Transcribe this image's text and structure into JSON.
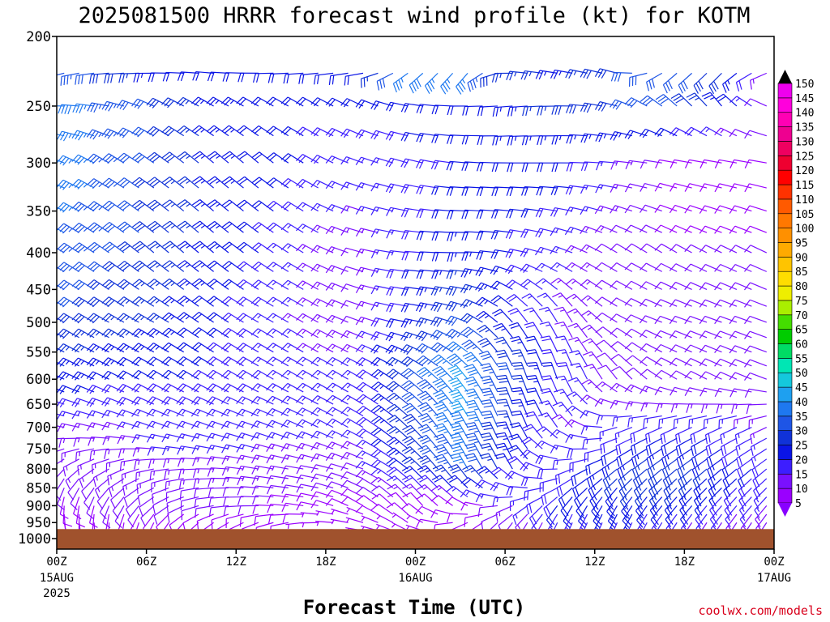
{
  "chart_data": {
    "type": "wind-barb-time-height",
    "title": "2025081500 HRRR forecast wind profile (kt) for KOTM",
    "xlabel": "Forecast Time (UTC)",
    "credit": "coolwx.com/models",
    "y_axis": {
      "unit": "hPa",
      "scale": "log",
      "range": [
        200,
        1000
      ],
      "inverted": true,
      "ticks": [
        "200",
        "250",
        "300",
        "350",
        "400",
        "450",
        "500",
        "550",
        "600",
        "650",
        "700",
        "750",
        "800",
        "850",
        "900",
        "950",
        "1000"
      ]
    },
    "x_axis": {
      "range_hours": [
        0,
        48
      ],
      "ticks": [
        {
          "hour": 0,
          "label": "00Z",
          "sub1": "15AUG",
          "sub2": "2025"
        },
        {
          "hour": 6,
          "label": "06Z",
          "sub1": "",
          "sub2": ""
        },
        {
          "hour": 12,
          "label": "12Z",
          "sub1": "",
          "sub2": ""
        },
        {
          "hour": 18,
          "label": "18Z",
          "sub1": "",
          "sub2": ""
        },
        {
          "hour": 24,
          "label": "00Z",
          "sub1": "16AUG",
          "sub2": ""
        },
        {
          "hour": 30,
          "label": "06Z",
          "sub1": "",
          "sub2": ""
        },
        {
          "hour": 36,
          "label": "12Z",
          "sub1": "",
          "sub2": ""
        },
        {
          "hour": 42,
          "label": "18Z",
          "sub1": "",
          "sub2": ""
        },
        {
          "hour": 48,
          "label": "00Z",
          "sub1": "17AUG",
          "sub2": ""
        }
      ]
    },
    "colorbar": {
      "unit": "kt",
      "levels": [
        5,
        10,
        15,
        20,
        25,
        30,
        35,
        40,
        45,
        50,
        55,
        60,
        65,
        70,
        75,
        80,
        85,
        90,
        95,
        100,
        105,
        110,
        115,
        120,
        125,
        130,
        135,
        140,
        145,
        150
      ],
      "colors": [
        "#9a00ff",
        "#7a10ff",
        "#3d1eff",
        "#0a14e6",
        "#1032d8",
        "#1e55e6",
        "#1e78f0",
        "#1ea0f0",
        "#14c8dc",
        "#00e6b4",
        "#00dc64",
        "#00cc00",
        "#44dd00",
        "#aaee00",
        "#eeee00",
        "#ffdd00",
        "#ffc400",
        "#ffaa00",
        "#ff9000",
        "#ff7800",
        "#ff5a00",
        "#ff3200",
        "#ff0000",
        "#ee0030",
        "#ee0060",
        "#ee0090",
        "#ff00b4",
        "#ff00dc",
        "#ee00ee",
        "#cc00cc"
      ],
      "extend_low_color": "#8800ff",
      "extend_high_color": "#000000"
    },
    "ground_color": "#a0522d",
    "ground_level_hpa": 970,
    "wind_profile": [
      {
        "level": 225,
        "dir": [
          255,
          265,
          270,
          275,
          270,
          265,
          260,
          230,
          220,
          275,
          280,
          285,
          230,
          225,
          250
        ],
        "speed": [
          35,
          30,
          22,
          22,
          20,
          20,
          22,
          38,
          36,
          26,
          24,
          30,
          32,
          28,
          10
        ]
      },
      {
        "level": 250,
        "dir": [
          270,
          280,
          295,
          300,
          300,
          300,
          295,
          280,
          270,
          265,
          270,
          285,
          310,
          320,
          290
        ],
        "speed": [
          40,
          35,
          30,
          25,
          22,
          20,
          20,
          22,
          20,
          24,
          28,
          30,
          32,
          24,
          10
        ]
      },
      {
        "level": 300,
        "dir": [
          290,
          300,
          305,
          310,
          310,
          300,
          290,
          285,
          275,
          270,
          270,
          275,
          280,
          280,
          280
        ],
        "speed": [
          38,
          35,
          30,
          25,
          22,
          20,
          16,
          18,
          20,
          22,
          22,
          16,
          10,
          8,
          8
        ]
      },
      {
        "level": 400,
        "dir": [
          300,
          305,
          310,
          310,
          305,
          300,
          285,
          275,
          270,
          280,
          290,
          300,
          300,
          295,
          295
        ],
        "speed": [
          35,
          32,
          28,
          24,
          20,
          15,
          12,
          18,
          24,
          20,
          16,
          12,
          10,
          10,
          10
        ]
      },
      {
        "level": 500,
        "dir": [
          300,
          300,
          300,
          305,
          300,
          300,
          290,
          280,
          290,
          320,
          330,
          300,
          290,
          290,
          290
        ],
        "speed": [
          30,
          28,
          26,
          22,
          18,
          14,
          12,
          22,
          32,
          20,
          14,
          12,
          10,
          10,
          10
        ]
      },
      {
        "level": 600,
        "dir": [
          295,
          295,
          300,
          300,
          300,
          300,
          300,
          305,
          320,
          340,
          340,
          320,
          300,
          295,
          290
        ],
        "speed": [
          24,
          22,
          20,
          20,
          18,
          16,
          16,
          30,
          42,
          30,
          18,
          12,
          10,
          10,
          10
        ]
      },
      {
        "level": 700,
        "dir": [
          280,
          285,
          290,
          290,
          290,
          295,
          300,
          315,
          330,
          340,
          320,
          250,
          245,
          245,
          245
        ],
        "speed": [
          14,
          14,
          16,
          16,
          16,
          16,
          16,
          28,
          40,
          24,
          14,
          16,
          20,
          18,
          14
        ]
      },
      {
        "level": 800,
        "dir": [
          220,
          240,
          260,
          270,
          280,
          280,
          290,
          310,
          330,
          330,
          250,
          230,
          230,
          230,
          230
        ],
        "speed": [
          12,
          14,
          14,
          14,
          14,
          12,
          12,
          24,
          36,
          20,
          18,
          26,
          30,
          24,
          18
        ]
      },
      {
        "level": 900,
        "dir": [
          180,
          200,
          230,
          260,
          270,
          280,
          300,
          320,
          300,
          240,
          210,
          210,
          220,
          220,
          220
        ],
        "speed": [
          8,
          10,
          10,
          10,
          10,
          8,
          8,
          10,
          8,
          14,
          22,
          24,
          22,
          18,
          14
        ]
      },
      {
        "level": 975,
        "dir": [
          160,
          170,
          200,
          220,
          240,
          260,
          280,
          300,
          220,
          200,
          200,
          200,
          210,
          210,
          210
        ],
        "speed": [
          8,
          8,
          8,
          8,
          8,
          6,
          6,
          6,
          8,
          10,
          14,
          14,
          12,
          10,
          10
        ]
      }
    ]
  }
}
